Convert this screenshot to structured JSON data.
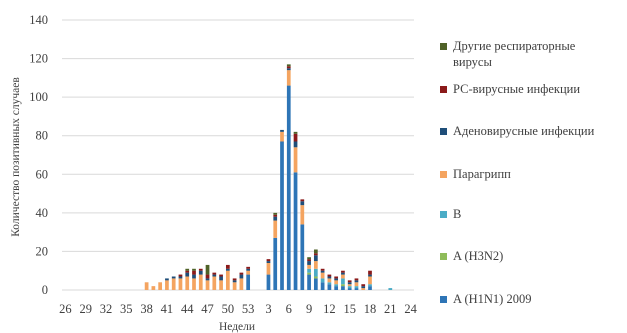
{
  "chart_data": {
    "type": "bar",
    "stacked": true,
    "xlabel": "Недели",
    "ylabel": "Количество позитивных случаев",
    "ylim": [
      0,
      140
    ],
    "yticks": [
      0,
      20,
      40,
      60,
      80,
      100,
      120,
      140
    ],
    "grid": true,
    "legend_position": "right",
    "categories": [
      "26",
      "27",
      "28",
      "29",
      "30",
      "31",
      "32",
      "33",
      "34",
      "35",
      "36",
      "37",
      "38",
      "39",
      "40",
      "41",
      "42",
      "43",
      "44",
      "45",
      "46",
      "47",
      "48",
      "49",
      "50",
      "51",
      "52",
      "53",
      "1",
      "2",
      "3",
      "4",
      "5",
      "6",
      "7",
      "8",
      "9",
      "10",
      "11",
      "12",
      "13",
      "14",
      "15",
      "16",
      "17",
      "18",
      "19",
      "20",
      "21",
      "22",
      "23",
      "24"
    ],
    "category_labels": [
      "26",
      "",
      "",
      "29",
      "",
      "",
      "32",
      "",
      "",
      "35",
      "",
      "",
      "38",
      "",
      "",
      "41",
      "",
      "",
      "44",
      "",
      "",
      "47",
      "",
      "",
      "50",
      "",
      "",
      "53",
      "",
      "",
      "3",
      "",
      "",
      "6",
      "",
      "",
      "9",
      "",
      "",
      "12",
      "",
      "",
      "15",
      "",
      "",
      "18",
      "",
      "",
      "21",
      "",
      "",
      "24"
    ],
    "series": [
      {
        "name": "A (H1N1) 2009",
        "color": "#2e75b6",
        "values": [
          0,
          0,
          0,
          0,
          0,
          0,
          0,
          0,
          0,
          0,
          0,
          0,
          0,
          0,
          0,
          0,
          0,
          0,
          0,
          0,
          0,
          0,
          0,
          0,
          0,
          0,
          0,
          8,
          0,
          0,
          8,
          27,
          77,
          106,
          61,
          34,
          8,
          6,
          4,
          3,
          2,
          2,
          1,
          1,
          0,
          2,
          0,
          0,
          0,
          0,
          0,
          0
        ]
      },
      {
        "name": "A (H3N2)",
        "color": "#8fbc5a",
        "values": [
          0,
          0,
          0,
          0,
          0,
          0,
          0,
          0,
          0,
          0,
          0,
          0,
          0,
          0,
          0,
          0,
          0,
          0,
          0,
          0,
          0,
          0,
          0,
          0,
          0,
          0,
          0,
          0,
          0,
          0,
          0,
          0,
          0,
          0,
          0,
          0,
          1,
          1,
          0,
          0,
          0,
          1,
          0,
          0,
          0,
          0,
          0,
          0,
          0,
          0,
          0,
          0
        ]
      },
      {
        "name": "B",
        "color": "#4bacc6",
        "values": [
          0,
          0,
          0,
          0,
          0,
          0,
          0,
          0,
          0,
          0,
          0,
          0,
          0,
          0,
          0,
          0,
          0,
          0,
          0,
          0,
          0,
          0,
          0,
          0,
          0,
          0,
          0,
          0,
          0,
          0,
          0,
          0,
          0,
          0,
          0,
          0,
          2,
          4,
          2,
          1,
          1,
          3,
          1,
          1,
          0,
          1,
          0,
          0,
          1,
          0,
          0,
          0
        ]
      },
      {
        "name": "Парагрипп",
        "color": "#f4a460",
        "values": [
          0,
          0,
          0,
          0,
          0,
          0,
          0,
          0,
          0,
          0,
          0,
          0,
          4,
          2,
          4,
          5,
          6,
          6,
          7,
          6,
          8,
          5,
          7,
          5,
          10,
          4,
          6,
          2,
          0,
          0,
          6,
          9,
          5,
          8,
          13,
          10,
          2,
          4,
          3,
          2,
          2,
          2,
          1,
          2,
          1,
          4,
          0,
          0,
          0,
          0,
          0,
          0
        ]
      },
      {
        "name": "Аденовирусные инфекции",
        "color": "#1f4e79",
        "values": [
          0,
          0,
          0,
          0,
          0,
          0,
          0,
          0,
          0,
          0,
          0,
          0,
          0,
          0,
          0,
          1,
          1,
          1,
          2,
          2,
          2,
          1,
          1,
          2,
          1,
          1,
          2,
          1,
          0,
          0,
          1,
          2,
          1,
          1,
          3,
          2,
          2,
          3,
          1,
          1,
          1,
          1,
          1,
          1,
          1,
          1,
          0,
          0,
          0,
          0,
          0,
          0
        ]
      },
      {
        "name": "РС-вирусные инфекции",
        "color": "#8b1a1a",
        "values": [
          0,
          0,
          0,
          0,
          0,
          0,
          0,
          0,
          0,
          0,
          0,
          0,
          0,
          0,
          0,
          0,
          0,
          1,
          1,
          2,
          1,
          2,
          1,
          1,
          2,
          1,
          1,
          1,
          0,
          0,
          1,
          1,
          0,
          1,
          4,
          1,
          1,
          1,
          1,
          1,
          1,
          1,
          1,
          1,
          1,
          2,
          0,
          0,
          0,
          0,
          0,
          0
        ]
      },
      {
        "name": "Другие респираторные вирусы",
        "color": "#4f6228",
        "values": [
          0,
          0,
          0,
          0,
          0,
          0,
          0,
          0,
          0,
          0,
          0,
          0,
          0,
          0,
          0,
          0,
          0,
          0,
          1,
          1,
          0,
          5,
          0,
          0,
          0,
          0,
          0,
          0,
          0,
          0,
          0,
          1,
          0,
          1,
          1,
          0,
          1,
          2,
          0,
          0,
          0,
          0,
          0,
          0,
          0,
          0,
          0,
          0,
          0,
          0,
          0,
          0
        ]
      }
    ],
    "legend_order": [
      "Другие респираторные вирусы",
      "РС-вирусные инфекции",
      "Аденовирусные инфекции",
      "Парагрипп",
      "B",
      "A (H3N2)",
      "A (H1N1) 2009"
    ]
  }
}
